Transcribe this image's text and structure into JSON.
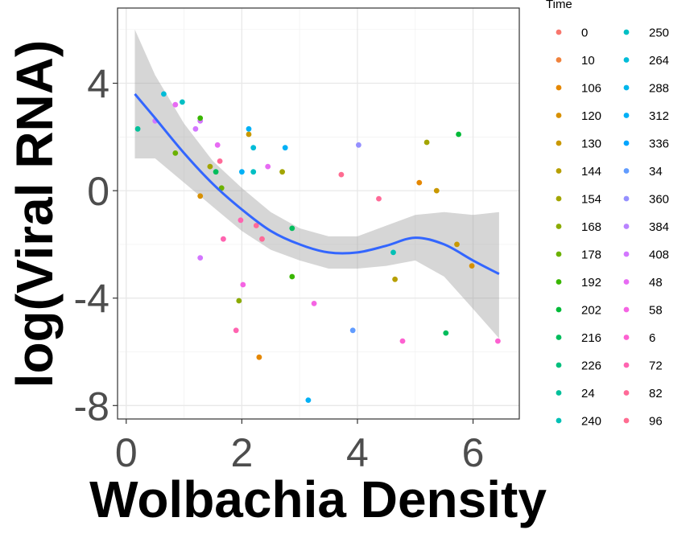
{
  "chart_data": {
    "type": "scatter",
    "xlabel": "Wolbachia Density",
    "ylabel": "log(Viral RNA)",
    "xlim": [
      -0.15,
      6.8
    ],
    "ylim": [
      -8.5,
      6.8
    ],
    "x_ticks": [
      "0",
      "2",
      "4",
      "6"
    ],
    "y_ticks": [
      "-8",
      "-4",
      "0",
      "4"
    ],
    "grid": true,
    "legend_title": "Time",
    "legend_position": "right",
    "legend_entries": [
      {
        "label": "0",
        "color": "#F8766D"
      },
      {
        "label": "10",
        "color": "#F0823C"
      },
      {
        "label": "106",
        "color": "#E58700"
      },
      {
        "label": "120",
        "color": "#D89000"
      },
      {
        "label": "130",
        "color": "#C99800"
      },
      {
        "label": "144",
        "color": "#B79F00"
      },
      {
        "label": "154",
        "color": "#A3A500"
      },
      {
        "label": "168",
        "color": "#8BAB00"
      },
      {
        "label": "178",
        "color": "#6BB100"
      },
      {
        "label": "192",
        "color": "#39B600"
      },
      {
        "label": "202",
        "color": "#00BA38"
      },
      {
        "label": "216",
        "color": "#00BD5C"
      },
      {
        "label": "226",
        "color": "#00BF7D"
      },
      {
        "label": "24",
        "color": "#00C09A"
      },
      {
        "label": "240",
        "color": "#00C0B5"
      },
      {
        "label": "250",
        "color": "#00BFC4"
      },
      {
        "label": "264",
        "color": "#00BCD8"
      },
      {
        "label": "288",
        "color": "#00B6EB"
      },
      {
        "label": "312",
        "color": "#00B0F6"
      },
      {
        "label": "336",
        "color": "#00A5FF"
      },
      {
        "label": "34",
        "color": "#619CFF"
      },
      {
        "label": "360",
        "color": "#9590FF"
      },
      {
        "label": "384",
        "color": "#B983FF"
      },
      {
        "label": "408",
        "color": "#D376FF"
      },
      {
        "label": "48",
        "color": "#E76BF3"
      },
      {
        "label": "58",
        "color": "#F564E3"
      },
      {
        "label": "6",
        "color": "#FD61D1"
      },
      {
        "label": "72",
        "color": "#FF64B0"
      },
      {
        "label": "82",
        "color": "#FF6A98"
      },
      {
        "label": "96",
        "color": "#FF6C91"
      }
    ],
    "points": [
      {
        "x": 0.2,
        "y": 2.3,
        "color": "#00C09A"
      },
      {
        "x": 0.5,
        "y": 2.6,
        "color": "#D376FF"
      },
      {
        "x": 0.65,
        "y": 3.6,
        "color": "#00BCD8"
      },
      {
        "x": 0.85,
        "y": 3.2,
        "color": "#E76BF3"
      },
      {
        "x": 0.85,
        "y": 1.4,
        "color": "#6BB100"
      },
      {
        "x": 0.97,
        "y": 3.3,
        "color": "#00BFC4"
      },
      {
        "x": 1.2,
        "y": 2.3,
        "color": "#D376FF"
      },
      {
        "x": 1.28,
        "y": 2.6,
        "color": "#D376FF"
      },
      {
        "x": 1.28,
        "y": 2.7,
        "color": "#39B600"
      },
      {
        "x": 1.28,
        "y": -0.2,
        "color": "#D89000"
      },
      {
        "x": 1.28,
        "y": -2.5,
        "color": "#D376FF"
      },
      {
        "x": 1.45,
        "y": 0.9,
        "color": "#A3A500"
      },
      {
        "x": 1.55,
        "y": 0.7,
        "color": "#00BD5C"
      },
      {
        "x": 1.58,
        "y": 1.7,
        "color": "#E76BF3"
      },
      {
        "x": 1.62,
        "y": 1.1,
        "color": "#FF6A98"
      },
      {
        "x": 1.65,
        "y": 0.1,
        "color": "#6BB100"
      },
      {
        "x": 1.68,
        "y": -1.8,
        "color": "#FF64B0"
      },
      {
        "x": 1.9,
        "y": -5.2,
        "color": "#FF64B0"
      },
      {
        "x": 1.95,
        "y": -4.1,
        "color": "#8BAB00"
      },
      {
        "x": 1.98,
        "y": -1.1,
        "color": "#FF64B0"
      },
      {
        "x": 2.0,
        "y": 0.7,
        "color": "#00B0F6"
      },
      {
        "x": 2.02,
        "y": -3.5,
        "color": "#F564E3"
      },
      {
        "x": 2.12,
        "y": 2.1,
        "color": "#C99800"
      },
      {
        "x": 2.12,
        "y": 2.3,
        "color": "#00B0F6"
      },
      {
        "x": 2.2,
        "y": 1.6,
        "color": "#00BCD8"
      },
      {
        "x": 2.2,
        "y": 0.7,
        "color": "#00BFC4"
      },
      {
        "x": 2.25,
        "y": -1.3,
        "color": "#FF6A98"
      },
      {
        "x": 2.3,
        "y": -6.2,
        "color": "#E58700"
      },
      {
        "x": 2.35,
        "y": -1.8,
        "color": "#FF6A98"
      },
      {
        "x": 2.45,
        "y": 0.9,
        "color": "#E76BF3"
      },
      {
        "x": 2.7,
        "y": 0.7,
        "color": "#A3A500"
      },
      {
        "x": 2.75,
        "y": 1.6,
        "color": "#00B0F6"
      },
      {
        "x": 2.87,
        "y": -1.4,
        "color": "#00BD5C"
      },
      {
        "x": 2.87,
        "y": -3.2,
        "color": "#39B600"
      },
      {
        "x": 3.15,
        "y": -7.8,
        "color": "#00B0F6"
      },
      {
        "x": 3.25,
        "y": -4.2,
        "color": "#F564E3"
      },
      {
        "x": 3.72,
        "y": 0.6,
        "color": "#FF6C91"
      },
      {
        "x": 3.92,
        "y": -5.2,
        "color": "#619CFF"
      },
      {
        "x": 4.02,
        "y": 1.7,
        "color": "#9590FF"
      },
      {
        "x": 4.37,
        "y": -0.3,
        "color": "#FF6A98"
      },
      {
        "x": 4.62,
        "y": -2.3,
        "color": "#00C0B5"
      },
      {
        "x": 4.65,
        "y": -3.3,
        "color": "#B79F00"
      },
      {
        "x": 4.78,
        "y": -5.6,
        "color": "#FD61D1"
      },
      {
        "x": 5.07,
        "y": 0.3,
        "color": "#E58700"
      },
      {
        "x": 5.2,
        "y": 1.8,
        "color": "#A3A500"
      },
      {
        "x": 5.37,
        "y": 0.0,
        "color": "#C99800"
      },
      {
        "x": 5.53,
        "y": -5.3,
        "color": "#00BD5C"
      },
      {
        "x": 5.72,
        "y": -2.0,
        "color": "#C99800"
      },
      {
        "x": 5.75,
        "y": 2.1,
        "color": "#00BA38"
      },
      {
        "x": 5.98,
        "y": -2.8,
        "color": "#D89000"
      },
      {
        "x": 6.43,
        "y": -5.6,
        "color": "#FD61D1"
      }
    ],
    "smooth_line": {
      "color": "#3366FF",
      "x": [
        0.15,
        0.5,
        1.0,
        1.5,
        2.0,
        2.5,
        3.0,
        3.5,
        4.0,
        4.5,
        5.0,
        5.5,
        6.0,
        6.45
      ],
      "y": [
        3.6,
        2.7,
        1.4,
        0.25,
        -0.7,
        -1.5,
        -2.0,
        -2.3,
        -2.3,
        -2.05,
        -1.75,
        -2.0,
        -2.6,
        -3.1
      ],
      "ci_upper": [
        6.0,
        4.3,
        2.5,
        1.1,
        0.1,
        -0.8,
        -1.4,
        -1.7,
        -1.7,
        -1.3,
        -0.9,
        -0.8,
        -0.9,
        -0.8
      ],
      "ci_lower": [
        1.2,
        1.2,
        0.3,
        -0.6,
        -1.5,
        -2.2,
        -2.6,
        -2.9,
        -2.9,
        -2.8,
        -2.6,
        -3.2,
        -4.4,
        -5.5
      ]
    }
  }
}
